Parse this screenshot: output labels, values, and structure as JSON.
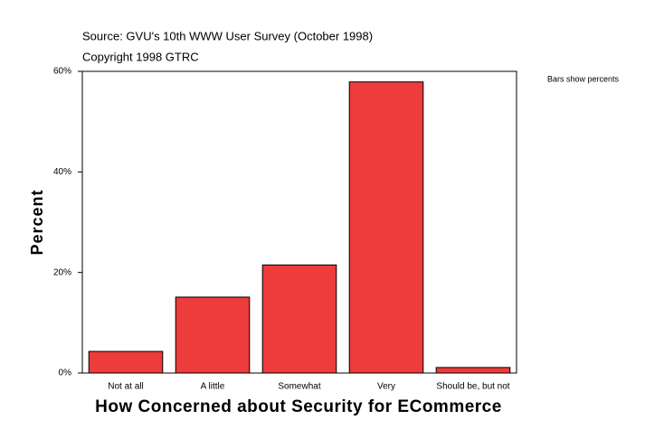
{
  "chart_data": {
    "type": "bar",
    "subtitle": "Source: GVU's 10th WWW User Survey (October 1998)",
    "copyright": "Copyright 1998 GTRC",
    "annotation": "Bars show percents",
    "y_label": "Percent",
    "x_label": "How Concerned about Security for ECommerce",
    "categories": [
      "Not at all",
      "A little",
      "Somewhat",
      "Very",
      "Should be, but not"
    ],
    "values": [
      4.3,
      15.1,
      21.5,
      57.9,
      1.1
    ],
    "color": "#ee3b3b",
    "ylim": [
      0,
      60
    ],
    "yticks": [
      {
        "value": 0,
        "label": "0%"
      },
      {
        "value": 20,
        "label": "20%"
      },
      {
        "value": 40,
        "label": "40%"
      },
      {
        "value": 60,
        "label": "60%"
      }
    ]
  }
}
